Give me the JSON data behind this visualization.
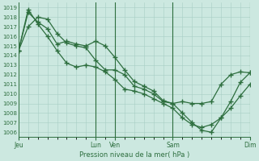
{
  "bg_color": "#cce8e0",
  "grid_color": "#a8cec4",
  "line_color": "#2d6e3e",
  "title": "Pression niveau de la mer( hPa )",
  "ylim": [
    1005.5,
    1019.5
  ],
  "yticks": [
    1006,
    1007,
    1008,
    1009,
    1010,
    1011,
    1012,
    1013,
    1014,
    1015,
    1016,
    1017,
    1018,
    1019
  ],
  "xtick_labels": [
    "Jeu",
    "Lun",
    "Ven",
    "Sam",
    "Dim"
  ],
  "xtick_positions": [
    0,
    96,
    120,
    192,
    288
  ],
  "vline_positions": [
    96,
    120,
    192,
    288
  ],
  "series1_x": [
    0,
    12,
    24,
    36,
    48,
    60,
    72,
    84,
    96,
    108,
    120,
    132,
    144,
    156,
    168,
    180,
    192,
    204,
    216,
    228,
    240,
    252,
    264,
    276,
    288
  ],
  "series1_y": [
    1014.5,
    1018.5,
    1017.5,
    1016.8,
    1015.2,
    1015.5,
    1015.2,
    1015.0,
    1015.5,
    1015.0,
    1013.8,
    1012.5,
    1011.3,
    1010.8,
    1010.3,
    1009.3,
    1009.0,
    1008.0,
    1007.0,
    1006.2,
    1006.0,
    1007.5,
    1009.2,
    1011.2,
    1012.2
  ],
  "series2_x": [
    0,
    12,
    24,
    36,
    48,
    60,
    72,
    84,
    96,
    108,
    120,
    132,
    144,
    156,
    168,
    180,
    192,
    204,
    216,
    228,
    240,
    252,
    264,
    276,
    288
  ],
  "series2_y": [
    1014.5,
    1018.8,
    1017.3,
    1016.0,
    1014.5,
    1013.2,
    1012.8,
    1013.0,
    1012.8,
    1012.3,
    1011.5,
    1010.5,
    1010.3,
    1010.0,
    1009.5,
    1009.0,
    1008.5,
    1007.5,
    1006.8,
    1006.5,
    1006.8,
    1007.5,
    1008.5,
    1009.8,
    1011.0
  ],
  "series3_x": [
    0,
    12,
    24,
    36,
    48,
    60,
    72,
    84,
    96,
    108,
    120,
    132,
    144,
    156,
    168,
    180,
    192,
    204,
    216,
    228,
    240,
    252,
    264,
    276,
    288
  ],
  "series3_y": [
    1014.5,
    1017.0,
    1018.0,
    1017.8,
    1016.3,
    1015.3,
    1015.0,
    1014.8,
    1013.5,
    1012.5,
    1012.5,
    1012.0,
    1010.8,
    1010.5,
    1010.0,
    1009.2,
    1009.0,
    1009.2,
    1009.0,
    1009.0,
    1009.2,
    1011.0,
    1012.0,
    1012.3,
    1012.2
  ]
}
